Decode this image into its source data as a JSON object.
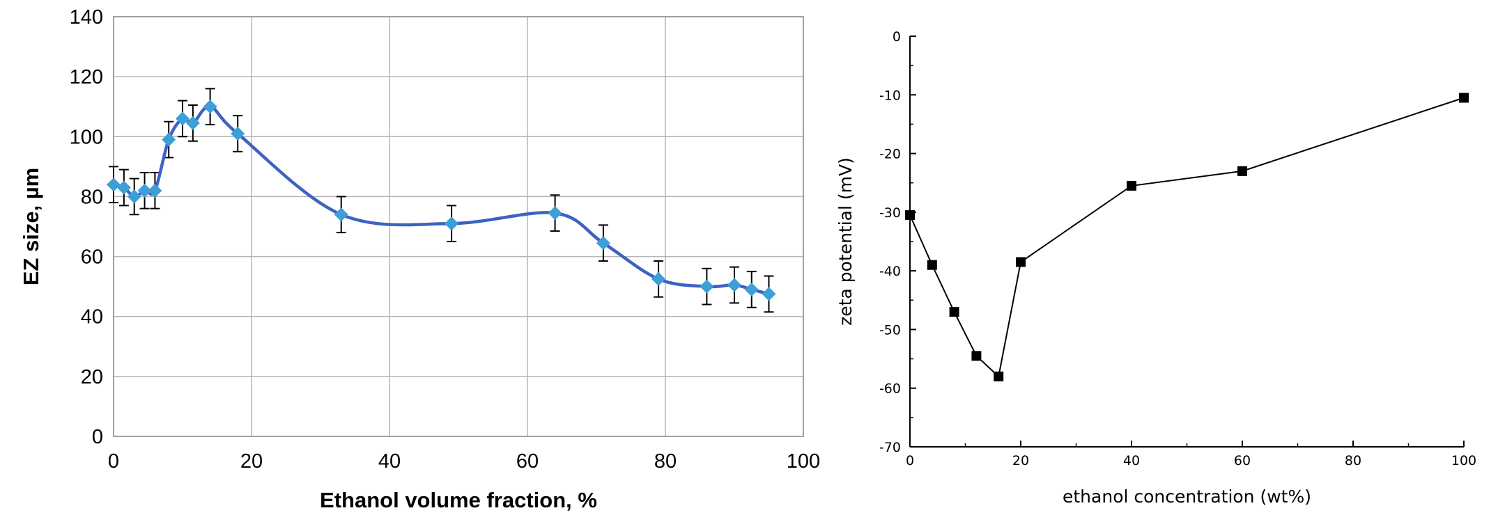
{
  "chart_data": [
    {
      "type": "scatter",
      "title": "",
      "xlabel": "Ethanol volume fraction, %",
      "ylabel": "EZ size, µm",
      "xlim": [
        0,
        100
      ],
      "ylim": [
        0,
        140
      ],
      "x_ticks": [
        0,
        20,
        40,
        60,
        80,
        100
      ],
      "y_ticks": [
        0,
        20,
        40,
        60,
        80,
        100,
        120,
        140
      ],
      "x_tick_labels": [
        "0",
        "20",
        "40",
        "60",
        "80",
        "100"
      ],
      "y_tick_labels": [
        "0",
        "20",
        "40",
        "60",
        "80",
        "100",
        "120",
        "140"
      ],
      "grid": true,
      "legend": "none",
      "marker": "diamond",
      "marker_color": "#3d9fd6",
      "line_color": "#3c62c2",
      "curve": "smoothed",
      "series": [
        {
          "name": "EZ size",
          "x": [
            0,
            1.5,
            3,
            4.5,
            6,
            8,
            10,
            11.5,
            14,
            18,
            33,
            49,
            64,
            71,
            79,
            86,
            90,
            92.5,
            95
          ],
          "y": [
            84,
            83,
            80,
            82,
            82,
            99,
            106,
            104.5,
            110,
            101,
            74,
            71,
            74.5,
            64.5,
            52.5,
            50,
            50.5,
            49,
            47.5
          ],
          "error": [
            6,
            6,
            6,
            6,
            6,
            6,
            6,
            6,
            6,
            6,
            6,
            6,
            6,
            6,
            6,
            6,
            6,
            6,
            6
          ]
        }
      ]
    },
    {
      "type": "line",
      "title": "",
      "xlabel": "ethanol concentration (wt%)",
      "ylabel": "zeta potential (mV)",
      "xlim": [
        0,
        100
      ],
      "ylim": [
        -70,
        0
      ],
      "x_ticks": [
        0,
        20,
        40,
        60,
        80,
        100
      ],
      "y_ticks": [
        0,
        -10,
        -20,
        -30,
        -40,
        -50,
        -60,
        -70
      ],
      "x_tick_labels": [
        "0",
        "20",
        "40",
        "60",
        "80",
        "100"
      ],
      "y_tick_labels": [
        "0",
        "-10",
        "-20",
        "-30",
        "-40",
        "-50",
        "-60",
        "-70"
      ],
      "grid": false,
      "legend": "none",
      "marker": "square",
      "series": [
        {
          "name": "zeta potential",
          "x": [
            0,
            4,
            8,
            12,
            16,
            20,
            40,
            60,
            100
          ],
          "y": [
            -30.5,
            -39,
            -47,
            -54.5,
            -58,
            -38.5,
            -25.5,
            -23,
            -10.5
          ]
        }
      ]
    }
  ]
}
